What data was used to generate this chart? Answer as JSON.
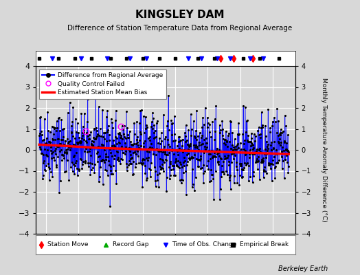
{
  "title": "KINGSLEY DAM",
  "subtitle": "Difference of Station Temperature Data from Regional Average",
  "ylabel": "Monthly Temperature Anomaly Difference (°C)",
  "xlim": [
    1937,
    2017
  ],
  "ylim": [
    -4,
    4
  ],
  "yticks": [
    -4,
    -3,
    -2,
    -1,
    0,
    1,
    2,
    3,
    4
  ],
  "xticks": [
    1940,
    1950,
    1960,
    1970,
    1980,
    1990,
    2000,
    2010
  ],
  "background_color": "#d8d8d8",
  "plot_bg_color": "#d8d8d8",
  "line_color": "blue",
  "bias_color": "red",
  "watermark": "Berkeley Earth",
  "station_move_years": [
    1994,
    1998,
    2004
  ],
  "record_gap_years": [],
  "obs_change_years": [
    1942,
    1951,
    1959,
    1966,
    1971,
    1984,
    1988,
    1993,
    1997,
    2003,
    2007
  ],
  "empirical_break_years": [
    1938,
    1944,
    1949,
    1954,
    1960,
    1965,
    1970,
    1975,
    1980,
    1987,
    1992,
    2001,
    2006,
    2012
  ],
  "start_year": 1938,
  "end_year": 2015,
  "bias_x": [
    1938,
    1945,
    1955,
    1965,
    1975,
    1985,
    1995,
    2005,
    2015
  ],
  "bias_y": [
    0.25,
    0.2,
    0.1,
    0.05,
    0.0,
    -0.05,
    -0.1,
    -0.15,
    -0.2
  ],
  "noise_scale": 0.85,
  "random_seed": 42
}
